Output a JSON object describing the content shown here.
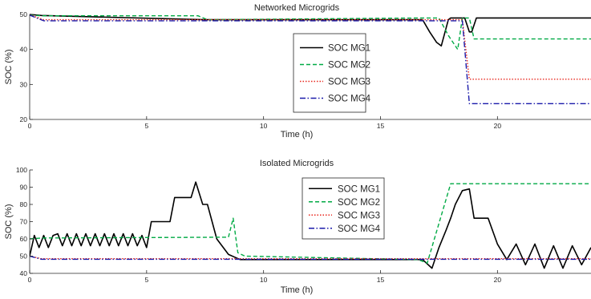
{
  "chart_data": [
    {
      "type": "line",
      "title": "Networked Microgrids",
      "xlabel": "Time (h)",
      "ylabel": "SOC (%)",
      "xlim": [
        0,
        24
      ],
      "ylim": [
        20,
        50
      ],
      "xticks": [
        0,
        5,
        10,
        15,
        20
      ],
      "yticks": [
        20,
        30,
        40,
        50
      ],
      "grid": false,
      "legend_position": "center-right",
      "series": [
        {
          "name": "SOC MG1",
          "color": "#000000",
          "dash": "solid",
          "x": [
            0,
            0.5,
            7.5,
            16.8,
            17.1,
            17.4,
            17.6,
            17.9,
            18.0,
            18.2,
            18.6,
            18.8,
            18.9,
            19.1,
            24
          ],
          "y": [
            50,
            49.7,
            48.5,
            48.5,
            45,
            42,
            41,
            48.5,
            49,
            49,
            49,
            45,
            45,
            49,
            49
          ]
        },
        {
          "name": "SOC MG2",
          "color": "#00aa44",
          "dash": "dashed",
          "x": [
            0,
            0.5,
            7.2,
            7.6,
            16.8,
            17.5,
            17.9,
            18.3,
            18.5,
            18.8,
            19.0,
            24
          ],
          "y": [
            49.8,
            49.6,
            49.6,
            48.5,
            49,
            49,
            44,
            40,
            49,
            49,
            43,
            43
          ]
        },
        {
          "name": "SOC MG3",
          "color": "#e8261c",
          "dash": "dotted",
          "x": [
            0,
            0.6,
            18.5,
            18.8,
            24
          ],
          "y": [
            49.9,
            48.5,
            48.5,
            31.5,
            31.5
          ]
        },
        {
          "name": "SOC MG4",
          "color": "#1a1aaa",
          "dash": "dashdot",
          "x": [
            0,
            0.6,
            18.5,
            18.8,
            24
          ],
          "y": [
            49.8,
            48.2,
            48.2,
            24.5,
            24.5
          ]
        }
      ]
    },
    {
      "type": "line",
      "title": "Isolated Microgrids",
      "xlabel": "Time (h)",
      "ylabel": "SOC (%)",
      "xlim": [
        0,
        24
      ],
      "ylim": [
        40,
        100
      ],
      "xticks": [
        0,
        5,
        10,
        15,
        20
      ],
      "yticks": [
        40,
        50,
        60,
        70,
        80,
        90,
        100
      ],
      "grid": false,
      "legend_position": "center-right",
      "series": [
        {
          "name": "SOC MG1",
          "color": "#000000",
          "dash": "solid",
          "x": [
            0,
            0.2,
            0.4,
            0.6,
            0.8,
            1.0,
            1.2,
            1.4,
            1.6,
            1.8,
            2.0,
            2.2,
            2.4,
            2.6,
            2.8,
            3.0,
            3.2,
            3.4,
            3.6,
            3.8,
            4.0,
            4.2,
            4.4,
            4.6,
            4.8,
            5.0,
            5.2,
            5.8,
            6.0,
            6.2,
            6.9,
            7.1,
            7.4,
            7.6,
            8.0,
            8.5,
            9.0,
            9.5,
            16.8,
            17.2,
            17.5,
            17.8,
            18.0,
            18.2,
            18.5,
            18.8,
            19.0,
            19.6,
            20.0,
            20.4,
            20.8,
            21.2,
            21.6,
            22.0,
            22.4,
            22.8,
            23.2,
            23.6,
            24
          ],
          "y": [
            50,
            62,
            55,
            62,
            55,
            62,
            63,
            56,
            63,
            56,
            63,
            56,
            63,
            56,
            63,
            56,
            63,
            56,
            63,
            56,
            63,
            56,
            63,
            56,
            62,
            55,
            70,
            70,
            70,
            84,
            84,
            93,
            80,
            80,
            60,
            51,
            48,
            48,
            48,
            43,
            55,
            65,
            72,
            80,
            88,
            89,
            72,
            72,
            57,
            48,
            57,
            45,
            57,
            43,
            56,
            43,
            56,
            45,
            55
          ]
        },
        {
          "name": "SOC MG2",
          "color": "#00aa44",
          "dash": "dashed",
          "x": [
            0,
            0.5,
            8.5,
            8.7,
            8.9,
            9.2,
            16.6,
            17.0,
            18.0,
            24
          ],
          "y": [
            60,
            60.5,
            61,
            72,
            52,
            50,
            48,
            46,
            92,
            92
          ]
        },
        {
          "name": "SOC MG3",
          "color": "#e8261c",
          "dash": "dotted",
          "x": [
            0,
            0.5,
            24
          ],
          "y": [
            50,
            48.5,
            48.5
          ]
        },
        {
          "name": "SOC MG4",
          "color": "#1a1aaa",
          "dash": "dashdot",
          "x": [
            0,
            0.5,
            24
          ],
          "y": [
            50,
            48.2,
            48.2
          ]
        }
      ]
    }
  ]
}
